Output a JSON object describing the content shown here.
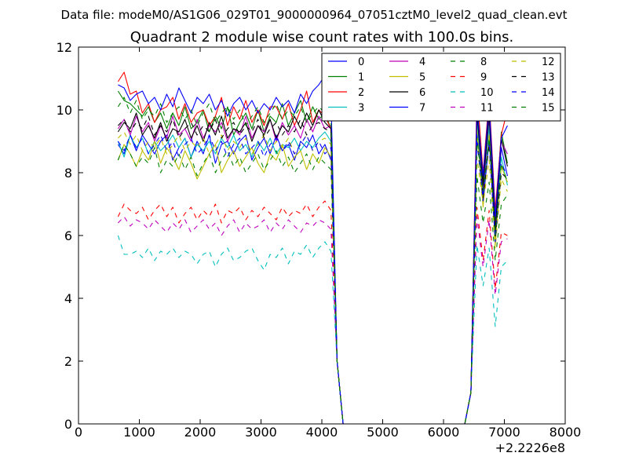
{
  "figure": {
    "suptitle": "Data file: modeM0/AS1G06_029T01_9000000964_07051cztM0_level2_quad_clean.evt"
  },
  "chart_data": {
    "type": "line",
    "title": "Quadrant 2 module wise count rates with 100.0s bins.",
    "xlabel": "",
    "ylabel": "",
    "x_offset_label": "+2.2226e8",
    "xlim": [
      0,
      8000
    ],
    "ylim": [
      0,
      12
    ],
    "x_ticks": [
      0,
      1000,
      2000,
      3000,
      4000,
      5000,
      6000,
      7000,
      8000
    ],
    "y_ticks": [
      0,
      2,
      4,
      6,
      8,
      10,
      12
    ],
    "x_tick_labels": [
      "0",
      "1000",
      "2000",
      "3000",
      "4000",
      "5000",
      "6000",
      "7000",
      "8000"
    ],
    "y_tick_labels": [
      "0",
      "2",
      "4",
      "6",
      "8",
      "10",
      "12"
    ],
    "grid": false,
    "legend_position": "top-right",
    "legend_columns": 4,
    "x": [
      650,
      750,
      850,
      950,
      1050,
      1150,
      1250,
      1350,
      1450,
      1550,
      1650,
      1750,
      1850,
      1950,
      2050,
      2150,
      2250,
      2350,
      2450,
      2550,
      2650,
      2750,
      2850,
      2950,
      3050,
      3150,
      3250,
      3350,
      3450,
      3550,
      3650,
      3750,
      3850,
      3950,
      4050,
      4150,
      4250,
      4350,
      4450,
      4550,
      4650,
      4750,
      4850,
      4950,
      5050,
      5150,
      5250,
      5350,
      5450,
      5550,
      5650,
      5750,
      5850,
      5950,
      6050,
      6150,
      6250,
      6350,
      6450,
      6550,
      6650,
      6750,
      6850,
      6950,
      7050
    ],
    "series": [
      {
        "name": "0",
        "color": "#0000ff",
        "dashed": false,
        "values": [
          8.9,
          8.6,
          9.2,
          8.7,
          9.2,
          8.9,
          8.6,
          9.0,
          9.2,
          8.4,
          8.8,
          9.1,
          8.5,
          9.0,
          8.6,
          9.2,
          8.3,
          8.9,
          9.0,
          8.6,
          9.0,
          9.2,
          8.4,
          8.8,
          9.1,
          8.6,
          9.2,
          8.7,
          8.9,
          8.4,
          9.0,
          8.8,
          9.2,
          8.6,
          8.9,
          8.4,
          2.0,
          0.0,
          0.0,
          0.0,
          0.0,
          0.0,
          0.0,
          0.0,
          0.0,
          0.0,
          0.0,
          0.0,
          0.0,
          0.0,
          0.0,
          0.0,
          0.0,
          0.0,
          0.0,
          0.0,
          0.0,
          0.0,
          1.0,
          9.8,
          7.3,
          9.6,
          6.0,
          8.8,
          7.9
        ]
      },
      {
        "name": "1",
        "color": "#008000",
        "dashed": false,
        "values": [
          10.6,
          10.3,
          10.2,
          10.0,
          9.8,
          10.1,
          9.6,
          9.9,
          9.4,
          9.9,
          9.5,
          10.1,
          9.4,
          9.6,
          10.0,
          9.3,
          9.8,
          9.4,
          10.1,
          9.2,
          9.6,
          9.9,
          9.4,
          10.0,
          9.3,
          9.8,
          9.6,
          10.2,
          9.5,
          9.9,
          10.3,
          9.6,
          10.1,
          9.7,
          9.9,
          9.4,
          2.0,
          0.0,
          0.0,
          0.0,
          0.0,
          0.0,
          0.0,
          0.0,
          0.0,
          0.0,
          0.0,
          0.0,
          0.0,
          0.0,
          0.0,
          0.0,
          0.0,
          0.0,
          0.0,
          0.0,
          0.0,
          0.0,
          1.0,
          10.2,
          7.8,
          10.1,
          6.4,
          9.3,
          8.3
        ]
      },
      {
        "name": "2",
        "color": "#ff0000",
        "dashed": false,
        "values": [
          10.9,
          11.2,
          10.5,
          10.6,
          9.9,
          10.2,
          9.6,
          10.0,
          10.1,
          10.4,
          9.7,
          10.2,
          9.6,
          9.9,
          10.0,
          9.5,
          9.8,
          10.4,
          9.5,
          10.1,
          9.7,
          10.3,
          9.6,
          10.0,
          9.5,
          10.1,
          10.1,
          9.7,
          10.2,
          9.5,
          10.0,
          10.6,
          9.6,
          10.0,
          9.8,
          9.4,
          2.0,
          0.0,
          0.0,
          0.0,
          0.0,
          0.0,
          0.0,
          0.0,
          0.0,
          0.0,
          0.0,
          0.0,
          0.0,
          0.0,
          0.0,
          0.0,
          0.0,
          0.0,
          0.0,
          0.0,
          0.0,
          0.0,
          1.0,
          10.6,
          8.0,
          10.4,
          6.8,
          9.2,
          10.0
        ]
      },
      {
        "name": "3",
        "color": "#00bfbf",
        "dashed": false,
        "values": [
          9.0,
          8.5,
          9.2,
          8.8,
          9.1,
          8.6,
          9.0,
          8.7,
          8.9,
          9.2,
          8.8,
          9.1,
          8.5,
          8.9,
          8.7,
          9.0,
          8.6,
          9.1,
          8.8,
          9.2,
          8.7,
          8.9,
          8.5,
          9.0,
          8.7,
          9.1,
          8.6,
          8.9,
          8.8,
          9.1,
          8.7,
          9.0,
          8.8,
          9.1,
          9.3,
          9.0,
          2.0,
          0.0,
          0.0,
          0.0,
          0.0,
          0.0,
          0.0,
          0.0,
          0.0,
          0.0,
          0.0,
          0.0,
          0.0,
          0.0,
          0.0,
          0.0,
          0.0,
          0.0,
          0.0,
          0.0,
          0.0,
          0.0,
          1.0,
          9.6,
          7.0,
          9.5,
          5.8,
          8.5,
          7.6
        ]
      },
      {
        "name": "4",
        "color": "#bf00bf",
        "dashed": false,
        "values": [
          9.4,
          9.7,
          9.2,
          9.8,
          9.3,
          9.6,
          9.0,
          9.5,
          9.1,
          9.8,
          9.2,
          9.4,
          9.0,
          9.7,
          9.1,
          9.5,
          9.3,
          9.6,
          9.0,
          9.4,
          9.2,
          9.8,
          9.1,
          9.5,
          9.3,
          9.7,
          9.0,
          9.6,
          9.2,
          9.5,
          9.1,
          9.7,
          9.3,
          9.8,
          9.4,
          9.5,
          2.0,
          0.0,
          0.0,
          0.0,
          0.0,
          0.0,
          0.0,
          0.0,
          0.0,
          0.0,
          0.0,
          0.0,
          0.0,
          0.0,
          0.0,
          0.0,
          0.0,
          0.0,
          0.0,
          0.0,
          0.0,
          0.0,
          1.0,
          10.0,
          7.5,
          9.8,
          6.2,
          9.0,
          8.6
        ]
      },
      {
        "name": "5",
        "color": "#bfbf00",
        "dashed": false,
        "values": [
          8.4,
          8.9,
          8.6,
          8.2,
          8.7,
          8.4,
          9.0,
          8.3,
          8.8,
          8.5,
          8.1,
          8.7,
          8.3,
          7.8,
          8.2,
          8.6,
          8.9,
          8.0,
          8.4,
          8.7,
          8.2,
          8.5,
          8.8,
          8.3,
          8.0,
          8.6,
          8.4,
          8.9,
          8.2,
          8.5,
          8.7,
          8.1,
          8.6,
          8.3,
          8.8,
          8.5,
          2.0,
          0.0,
          0.0,
          0.0,
          0.0,
          0.0,
          0.0,
          0.0,
          0.0,
          0.0,
          0.0,
          0.0,
          0.0,
          0.0,
          0.0,
          0.0,
          0.0,
          0.0,
          0.0,
          0.0,
          0.0,
          0.0,
          1.0,
          9.4,
          6.9,
          9.2,
          5.7,
          8.2,
          7.7
        ]
      },
      {
        "name": "6",
        "color": "#000000",
        "dashed": false,
        "values": [
          9.3,
          9.6,
          9.4,
          9.9,
          9.2,
          9.5,
          9.1,
          9.6,
          9.0,
          9.4,
          9.3,
          9.7,
          9.1,
          9.5,
          9.0,
          9.6,
          9.2,
          9.8,
          9.1,
          9.4,
          9.3,
          9.6,
          9.0,
          9.5,
          9.2,
          9.7,
          9.1,
          9.5,
          9.3,
          9.8,
          9.4,
          9.9,
          9.5,
          10.0,
          9.6,
          9.4,
          2.0,
          0.0,
          0.0,
          0.0,
          0.0,
          0.0,
          0.0,
          0.0,
          0.0,
          0.0,
          0.0,
          0.0,
          0.0,
          0.0,
          0.0,
          0.0,
          0.0,
          0.0,
          0.0,
          0.0,
          0.0,
          0.0,
          1.0,
          9.9,
          7.6,
          9.9,
          6.1,
          9.1,
          8.2
        ]
      },
      {
        "name": "7",
        "color": "#0000ff",
        "dashed": false,
        "values": [
          10.8,
          10.7,
          10.3,
          10.5,
          10.6,
          10.2,
          10.4,
          10.0,
          10.5,
          10.1,
          10.7,
          10.3,
          9.9,
          10.4,
          10.2,
          10.5,
          10.0,
          10.3,
          9.8,
          10.2,
          10.4,
          10.0,
          10.3,
          9.9,
          10.2,
          10.0,
          10.4,
          10.1,
          10.3,
          9.9,
          10.5,
          10.2,
          10.6,
          10.8,
          11.1,
          10.5,
          2.0,
          0.0,
          0.0,
          0.0,
          0.0,
          0.0,
          0.0,
          0.0,
          0.0,
          0.0,
          0.0,
          0.0,
          0.0,
          0.0,
          0.0,
          0.0,
          0.0,
          0.0,
          0.0,
          0.0,
          0.0,
          0.0,
          1.0,
          10.1,
          7.9,
          10.2,
          6.6,
          9.1,
          9.5
        ]
      },
      {
        "name": "8",
        "color": "#008000",
        "dashed": true,
        "values": [
          8.4,
          8.9,
          8.6,
          8.2,
          8.5,
          8.3,
          8.8,
          8.0,
          8.4,
          8.2,
          8.6,
          8.1,
          8.5,
          7.9,
          8.3,
          8.6,
          8.0,
          8.4,
          8.7,
          8.2,
          8.5,
          8.0,
          8.3,
          8.6,
          8.1,
          8.4,
          8.7,
          8.2,
          8.5,
          8.0,
          8.3,
          8.6,
          8.1,
          8.5,
          8.3,
          8.1,
          2.0,
          0.0,
          0.0,
          0.0,
          0.0,
          0.0,
          0.0,
          0.0,
          0.0,
          0.0,
          0.0,
          0.0,
          0.0,
          0.0,
          0.0,
          0.0,
          0.0,
          0.0,
          0.0,
          0.0,
          0.0,
          0.0,
          1.0,
          7.9,
          6.4,
          7.7,
          5.2,
          7.0,
          7.3
        ]
      },
      {
        "name": "9",
        "color": "#ff0000",
        "dashed": true,
        "values": [
          6.6,
          7.0,
          6.8,
          6.7,
          6.9,
          6.5,
          6.8,
          7.0,
          6.6,
          6.9,
          6.4,
          6.7,
          6.9,
          6.5,
          6.8,
          6.6,
          7.0,
          6.4,
          6.8,
          6.7,
          6.9,
          6.5,
          6.8,
          6.6,
          6.9,
          6.7,
          6.5,
          6.9,
          6.6,
          6.8,
          6.7,
          7.0,
          6.6,
          6.9,
          7.1,
          6.8,
          2.0,
          0.0,
          0.0,
          0.0,
          0.0,
          0.0,
          0.0,
          0.0,
          0.0,
          0.0,
          0.0,
          0.0,
          0.0,
          0.0,
          0.0,
          0.0,
          0.0,
          0.0,
          0.0,
          0.0,
          0.0,
          0.0,
          1.0,
          6.9,
          5.2,
          6.8,
          4.3,
          6.1,
          6.0
        ]
      },
      {
        "name": "10",
        "color": "#00bfbf",
        "dashed": true,
        "values": [
          6.0,
          5.4,
          5.4,
          5.5,
          5.3,
          5.6,
          5.2,
          5.5,
          5.4,
          5.6,
          5.3,
          5.5,
          5.4,
          5.1,
          5.4,
          5.5,
          5.0,
          5.4,
          5.6,
          5.2,
          5.3,
          5.5,
          5.6,
          5.2,
          4.9,
          5.4,
          5.3,
          5.6,
          5.1,
          5.5,
          5.4,
          5.7,
          5.3,
          5.6,
          5.8,
          5.5,
          2.0,
          0.0,
          0.0,
          0.0,
          0.0,
          0.0,
          0.0,
          0.0,
          0.0,
          0.0,
          0.0,
          0.0,
          0.0,
          0.0,
          0.0,
          0.0,
          0.0,
          0.0,
          0.0,
          0.0,
          0.0,
          0.0,
          1.0,
          5.7,
          4.4,
          5.6,
          3.1,
          5.0,
          5.2
        ]
      },
      {
        "name": "11",
        "color": "#bf00bf",
        "dashed": true,
        "values": [
          6.4,
          6.6,
          6.3,
          6.5,
          6.4,
          6.2,
          6.5,
          6.3,
          6.1,
          6.4,
          6.2,
          6.5,
          6.1,
          6.3,
          6.5,
          6.2,
          6.4,
          6.0,
          6.3,
          6.5,
          6.1,
          6.4,
          6.2,
          6.3,
          6.5,
          6.1,
          6.4,
          6.2,
          6.5,
          6.3,
          6.1,
          6.4,
          6.3,
          6.5,
          6.4,
          6.2,
          2.0,
          0.0,
          0.0,
          0.0,
          0.0,
          0.0,
          0.0,
          0.0,
          0.0,
          0.0,
          0.0,
          0.0,
          0.0,
          0.0,
          0.0,
          0.0,
          0.0,
          0.0,
          0.0,
          0.0,
          0.0,
          0.0,
          1.0,
          6.6,
          5.0,
          6.5,
          4.1,
          5.8,
          5.9
        ]
      },
      {
        "name": "12",
        "color": "#bfbf00",
        "dashed": true,
        "values": [
          9.1,
          9.3,
          8.9,
          9.2,
          8.7,
          9.0,
          8.8,
          9.1,
          8.6,
          8.9,
          9.2,
          8.7,
          9.0,
          8.8,
          9.1,
          8.6,
          8.9,
          9.2,
          8.7,
          9.0,
          8.8,
          9.1,
          8.6,
          8.9,
          9.2,
          8.7,
          9.0,
          8.8,
          9.1,
          8.6,
          8.9,
          9.2,
          8.7,
          9.0,
          9.1,
          8.9,
          2.0,
          0.0,
          0.0,
          0.0,
          0.0,
          0.0,
          0.0,
          0.0,
          0.0,
          0.0,
          0.0,
          0.0,
          0.0,
          0.0,
          0.0,
          0.0,
          0.0,
          0.0,
          0.0,
          0.0,
          0.0,
          0.0,
          1.0,
          8.5,
          7.0,
          8.4,
          5.6,
          7.8,
          7.4
        ]
      },
      {
        "name": "13",
        "color": "#000000",
        "dashed": true,
        "values": [
          9.5,
          9.7,
          9.3,
          9.6,
          9.4,
          9.8,
          9.2,
          9.5,
          9.3,
          9.7,
          9.1,
          9.4,
          9.6,
          9.2,
          9.5,
          9.3,
          9.7,
          9.1,
          9.4,
          9.6,
          9.2,
          9.5,
          9.3,
          9.7,
          9.1,
          9.4,
          9.6,
          9.2,
          9.5,
          9.3,
          9.7,
          9.2,
          9.5,
          9.6,
          9.4,
          9.3,
          2.0,
          0.0,
          0.0,
          0.0,
          0.0,
          0.0,
          0.0,
          0.0,
          0.0,
          0.0,
          0.0,
          0.0,
          0.0,
          0.0,
          0.0,
          0.0,
          0.0,
          0.0,
          0.0,
          0.0,
          0.0,
          0.0,
          1.0,
          9.0,
          7.2,
          8.9,
          5.9,
          8.0,
          7.8
        ]
      },
      {
        "name": "14",
        "color": "#0000ff",
        "dashed": true,
        "values": [
          9.0,
          8.7,
          9.2,
          8.8,
          9.1,
          8.6,
          8.9,
          9.2,
          8.7,
          9.0,
          8.5,
          8.9,
          9.1,
          8.6,
          8.8,
          9.2,
          8.7,
          9.0,
          8.5,
          8.9,
          9.1,
          8.6,
          8.8,
          9.0,
          8.5,
          8.9,
          9.1,
          8.7,
          9.0,
          8.6,
          8.9,
          9.2,
          8.7,
          9.0,
          8.6,
          8.8,
          2.0,
          0.0,
          0.0,
          0.0,
          0.0,
          0.0,
          0.0,
          0.0,
          0.0,
          0.0,
          0.0,
          0.0,
          0.0,
          0.0,
          0.0,
          0.0,
          0.0,
          0.0,
          0.0,
          0.0,
          0.0,
          0.0,
          1.0,
          9.2,
          7.1,
          9.0,
          5.8,
          8.3,
          7.9
        ]
      },
      {
        "name": "15",
        "color": "#008000",
        "dashed": true,
        "values": [
          10.1,
          10.4,
          9.9,
          10.3,
          9.7,
          10.0,
          9.8,
          10.2,
          9.6,
          9.9,
          10.1,
          9.7,
          10.0,
          9.5,
          9.9,
          10.2,
          9.6,
          9.9,
          10.1,
          9.7,
          10.0,
          9.5,
          9.8,
          10.1,
          9.6,
          9.9,
          10.2,
          9.7,
          10.0,
          9.8,
          10.1,
          9.6,
          9.9,
          10.1,
          9.9,
          9.7,
          2.0,
          0.0,
          0.0,
          0.0,
          0.0,
          0.0,
          0.0,
          0.0,
          0.0,
          0.0,
          0.0,
          0.0,
          0.0,
          0.0,
          0.0,
          0.0,
          0.0,
          0.0,
          0.0,
          0.0,
          0.0,
          0.0,
          1.0,
          9.1,
          7.4,
          9.1,
          6.0,
          8.3,
          7.7
        ]
      }
    ]
  }
}
